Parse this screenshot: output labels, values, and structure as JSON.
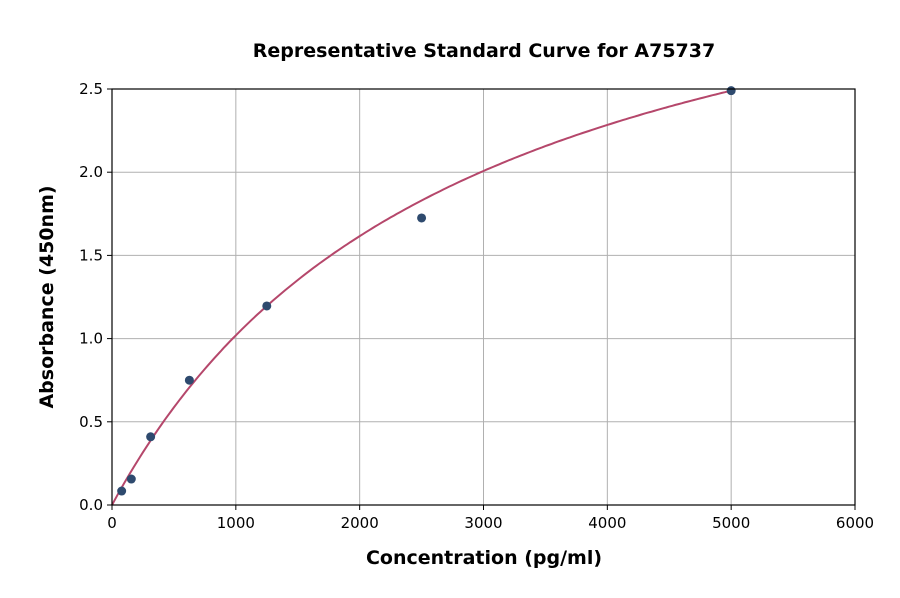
{
  "chart_data": {
    "type": "scatter",
    "title": "Representative Standard Curve for A75737",
    "xlabel": "Concentration (pg/ml)",
    "ylabel": "Absorbance (450nm)",
    "xlim": [
      0,
      6000
    ],
    "ylim": [
      0,
      2.5
    ],
    "xticks": [
      0,
      1000,
      2000,
      3000,
      4000,
      5000,
      6000
    ],
    "yticks": [
      "0.0",
      "0.5",
      "1.0",
      "1.5",
      "2.0",
      "2.5"
    ],
    "grid": true,
    "points": {
      "x": [
        78,
        156,
        312,
        625,
        1250,
        2500,
        5000
      ],
      "y": [
        0.084,
        0.156,
        0.41,
        0.75,
        1.196,
        1.725,
        2.49
      ]
    },
    "colors": {
      "points": "#2e4a6e",
      "curve": "#b5476b",
      "grid": "#b0b0b0"
    }
  }
}
